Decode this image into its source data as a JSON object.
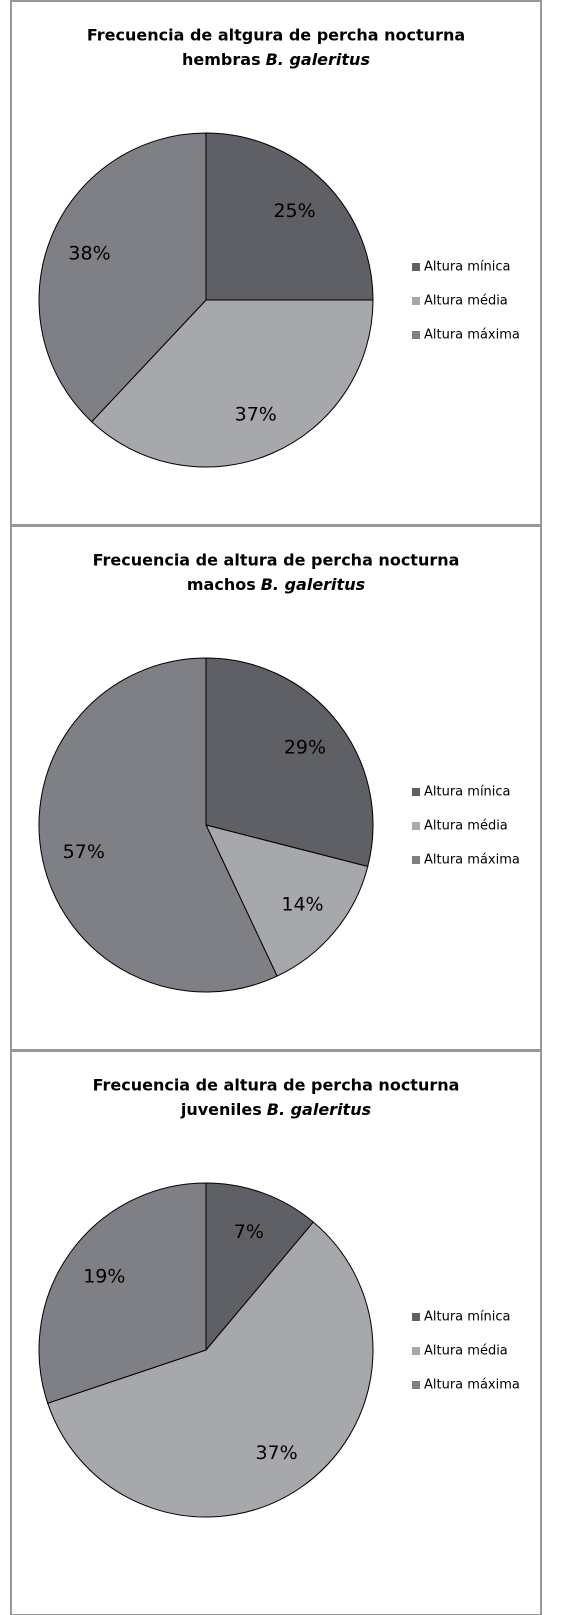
{
  "chart_data": [
    {
      "type": "pie",
      "title": "Frecuencia de altgura de percha nocturna",
      "subtitle": "hembras",
      "species": "B. galeritus",
      "categories": [
        "Altura mínica",
        "Altura média",
        "Altura máxima"
      ],
      "values": [
        25,
        37,
        38
      ],
      "value_labels": [
        "25%",
        "37%",
        "38%"
      ],
      "colors": [
        "#5f6065",
        "#a6a8ac",
        "#7f8085"
      ],
      "legend": "right"
    },
    {
      "type": "pie",
      "title": "Frecuencia de altura de percha nocturna",
      "subtitle": "machos",
      "species": "B. galeritus",
      "categories": [
        "Altura mínica",
        "Altura média",
        "Altura máxima"
      ],
      "values": [
        29,
        14,
        57
      ],
      "value_labels": [
        "29%",
        "14%",
        "57%"
      ],
      "colors": [
        "#5f6065",
        "#a6a8ac",
        "#7f8085"
      ],
      "legend": "right"
    },
    {
      "type": "pie",
      "title": "Frecuencia de altura de percha nocturna",
      "subtitle": "juveniles",
      "species": "B. galeritus",
      "categories": [
        "Altura mínica",
        "Altura média",
        "Altura máxima"
      ],
      "values": [
        7,
        37,
        19
      ],
      "value_labels": [
        "7%",
        "37%",
        "19%"
      ],
      "colors": [
        "#5f6065",
        "#a6a8ac",
        "#7f8085"
      ],
      "legend": "right"
    }
  ]
}
